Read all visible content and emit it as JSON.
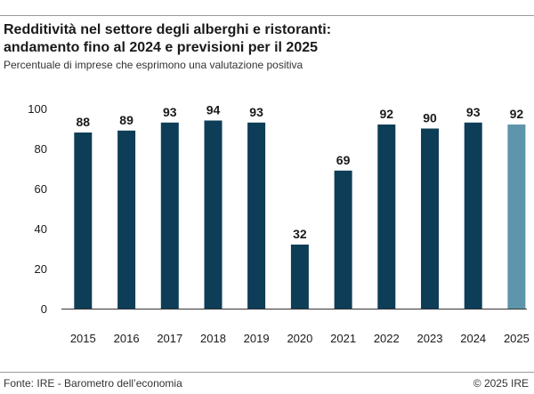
{
  "title_line1": "Redditività nel settore degli alberghi e ristoranti:",
  "title_line2": "andamento fino al 2024 e previsioni per il 2025",
  "subtitle": "Percentuale di imprese che esprimono una valutazione positiva",
  "source": "Fonte: IRE - Barometro dell’economia",
  "copyright": "© 2025 IRE",
  "colors": {
    "actual": "#0e3d57",
    "forecast": "#5e95ab",
    "axis": "#333333"
  },
  "chart_data": {
    "type": "bar",
    "title": "Redditività nel settore degli alberghi e ristoranti: andamento fino al 2024 e previsioni per il 2025",
    "subtitle": "Percentuale di imprese che esprimono una valutazione positiva",
    "categories": [
      "2015",
      "2016",
      "2017",
      "2018",
      "2019",
      "2020",
      "2021",
      "2022",
      "2023",
      "2024",
      "2025"
    ],
    "values": [
      88,
      89,
      93,
      94,
      93,
      32,
      69,
      92,
      90,
      93,
      92
    ],
    "labels": [
      "88",
      "89",
      "93",
      "94",
      "93",
      "32",
      "69",
      "92",
      "90",
      "93",
      "92"
    ],
    "forecast": [
      false,
      false,
      false,
      false,
      false,
      false,
      false,
      false,
      false,
      false,
      true
    ],
    "xlabel": "",
    "ylabel": "",
    "ylim": [
      0,
      100
    ],
    "yticks": [
      0,
      20,
      40,
      60,
      80,
      100
    ],
    "grid": false,
    "legend": "none"
  }
}
